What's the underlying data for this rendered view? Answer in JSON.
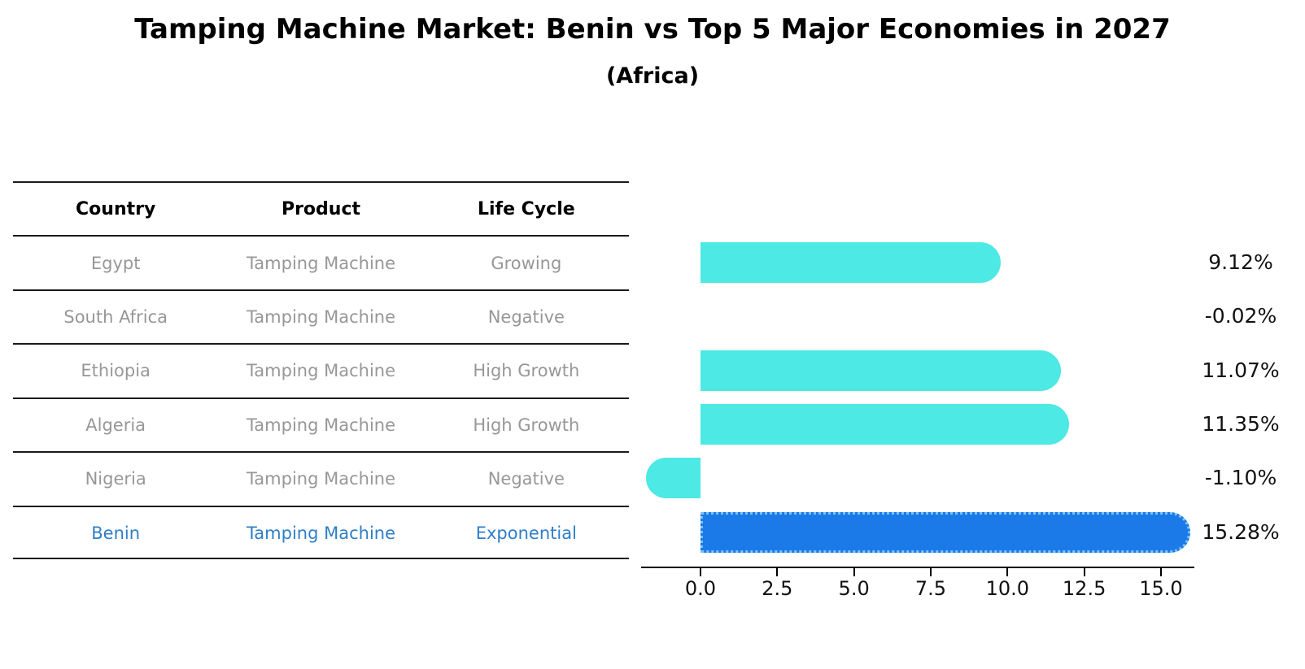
{
  "title": "Tamping Machine Market: Benin vs Top 5 Major Economies in 2027",
  "subtitle": "(Africa)",
  "table": {
    "headers": [
      "Country",
      "Product",
      "Life Cycle"
    ],
    "rows": [
      {
        "country": "Egypt",
        "product": "Tamping Machine",
        "life_cycle": "Growing",
        "highlight": false
      },
      {
        "country": "South Africa",
        "product": "Tamping Machine",
        "life_cycle": "Negative",
        "highlight": false
      },
      {
        "country": "Ethiopia",
        "product": "Tamping Machine",
        "life_cycle": "High Growth",
        "highlight": false
      },
      {
        "country": "Algeria",
        "product": "Tamping Machine",
        "life_cycle": "High Growth",
        "highlight": false
      },
      {
        "country": "Nigeria",
        "product": "Tamping Machine",
        "life_cycle": "Negative",
        "highlight": false
      },
      {
        "country": "Benin",
        "product": "Tamping Machine",
        "life_cycle": "Exponential",
        "highlight": true
      }
    ]
  },
  "chart_data": {
    "type": "bar",
    "orientation": "horizontal",
    "title": "Tamping Machine Market: Benin vs Top 5 Major Economies in 2027 (Africa)",
    "categories": [
      "Egypt",
      "South Africa",
      "Ethiopia",
      "Algeria",
      "Nigeria",
      "Benin"
    ],
    "values": [
      9.12,
      -0.02,
      11.07,
      11.35,
      -1.1,
      15.28
    ],
    "value_labels": [
      "9.12%",
      "-0.02%",
      "11.07%",
      "11.35%",
      "-1.10%",
      "15.28%"
    ],
    "highlight_index": 5,
    "x_ticks": [
      0.0,
      2.5,
      5.0,
      7.5,
      10.0,
      12.5,
      15.0
    ],
    "x_tick_labels": [
      "0.0",
      "2.5",
      "5.0",
      "7.5",
      "10.0",
      "12.5",
      "15.0"
    ],
    "xlim": [
      -1.9,
      16.1
    ],
    "grid": false,
    "legend": null,
    "colors": {
      "bar_default": "#4de9e4",
      "bar_highlight": "#1b7ae8",
      "bar_highlight_dotted_edge": "#7cc4f7",
      "highlight_text": "#2e7ec8",
      "table_text": "#979797",
      "axis_and_labels": "#111111"
    }
  }
}
